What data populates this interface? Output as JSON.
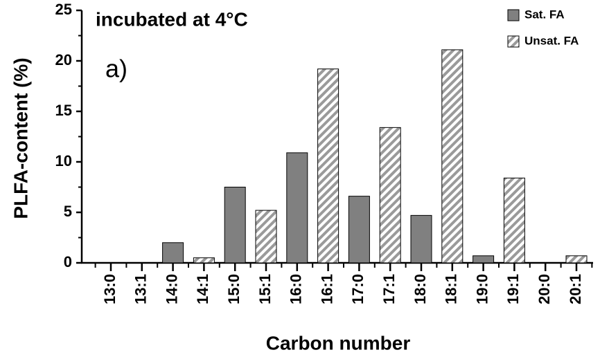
{
  "chart_data": {
    "type": "bar",
    "title": "incubated at 4°C",
    "annotation": "a)",
    "x_label": "Carbon number",
    "y_label": "PLFA-content (%)",
    "categories": [
      "13:0",
      "13:1",
      "14:0",
      "14:1",
      "15:0",
      "15:1",
      "16:0",
      "16:1",
      "17:0",
      "17:1",
      "18:0",
      "18:1",
      "19:0",
      "19:1",
      "20:0",
      "20:1"
    ],
    "series": [
      {
        "name": "Sat. FA",
        "color": "#808080",
        "hatch": false,
        "values": [
          0,
          null,
          2.0,
          null,
          7.5,
          null,
          10.9,
          null,
          6.6,
          null,
          4.7,
          null,
          0.7,
          null,
          0,
          null
        ]
      },
      {
        "name": "Unsat. FA",
        "color": "#9a9a9a",
        "hatch": true,
        "values": [
          null,
          0,
          null,
          0.5,
          null,
          5.2,
          null,
          19.2,
          null,
          13.4,
          null,
          21.1,
          null,
          8.4,
          null,
          0.7
        ]
      }
    ],
    "ylim": [
      0,
      25
    ],
    "yticks": [
      0,
      5,
      10,
      15,
      20,
      25
    ],
    "legend": "top-right"
  }
}
